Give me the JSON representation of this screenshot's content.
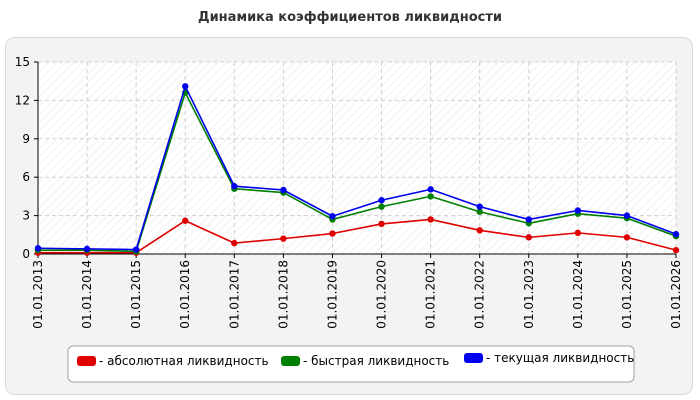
{
  "title": "Динамика коэффициентов ликвидности",
  "chart_data": {
    "type": "line",
    "categories": [
      "01.01.2013",
      "01.01.2014",
      "01.01.2015",
      "01.01.2016",
      "01.01.2017",
      "01.01.2018",
      "01.01.2019",
      "01.01.2020",
      "01.01.2021",
      "01.01.2022",
      "01.01.2023",
      "01.01.2024",
      "01.01.2025",
      "01.01.2026"
    ],
    "ylim": [
      0,
      15
    ],
    "yticks": [
      0,
      3,
      6,
      9,
      12,
      15
    ],
    "grid": true,
    "legend_position": "bottom",
    "series": [
      {
        "name": "- абсолютная ликвидность",
        "color": "#e00000",
        "values": [
          0.1,
          0.1,
          0.1,
          2.6,
          0.85,
          1.2,
          1.6,
          2.35,
          2.7,
          1.85,
          1.3,
          1.65,
          1.3,
          0.3
        ]
      },
      {
        "name": "- быстрая ликвидность",
        "color": "#008000",
        "values": [
          0.3,
          0.3,
          0.2,
          12.6,
          5.1,
          4.8,
          2.7,
          3.7,
          4.5,
          3.3,
          2.4,
          3.15,
          2.8,
          1.4
        ]
      },
      {
        "name": "- текущая ликвидность",
        "color": "#0000ee",
        "values": [
          0.45,
          0.4,
          0.35,
          13.1,
          5.3,
          5.0,
          2.95,
          4.2,
          5.05,
          3.7,
          2.7,
          3.4,
          3.0,
          1.55
        ]
      }
    ]
  }
}
